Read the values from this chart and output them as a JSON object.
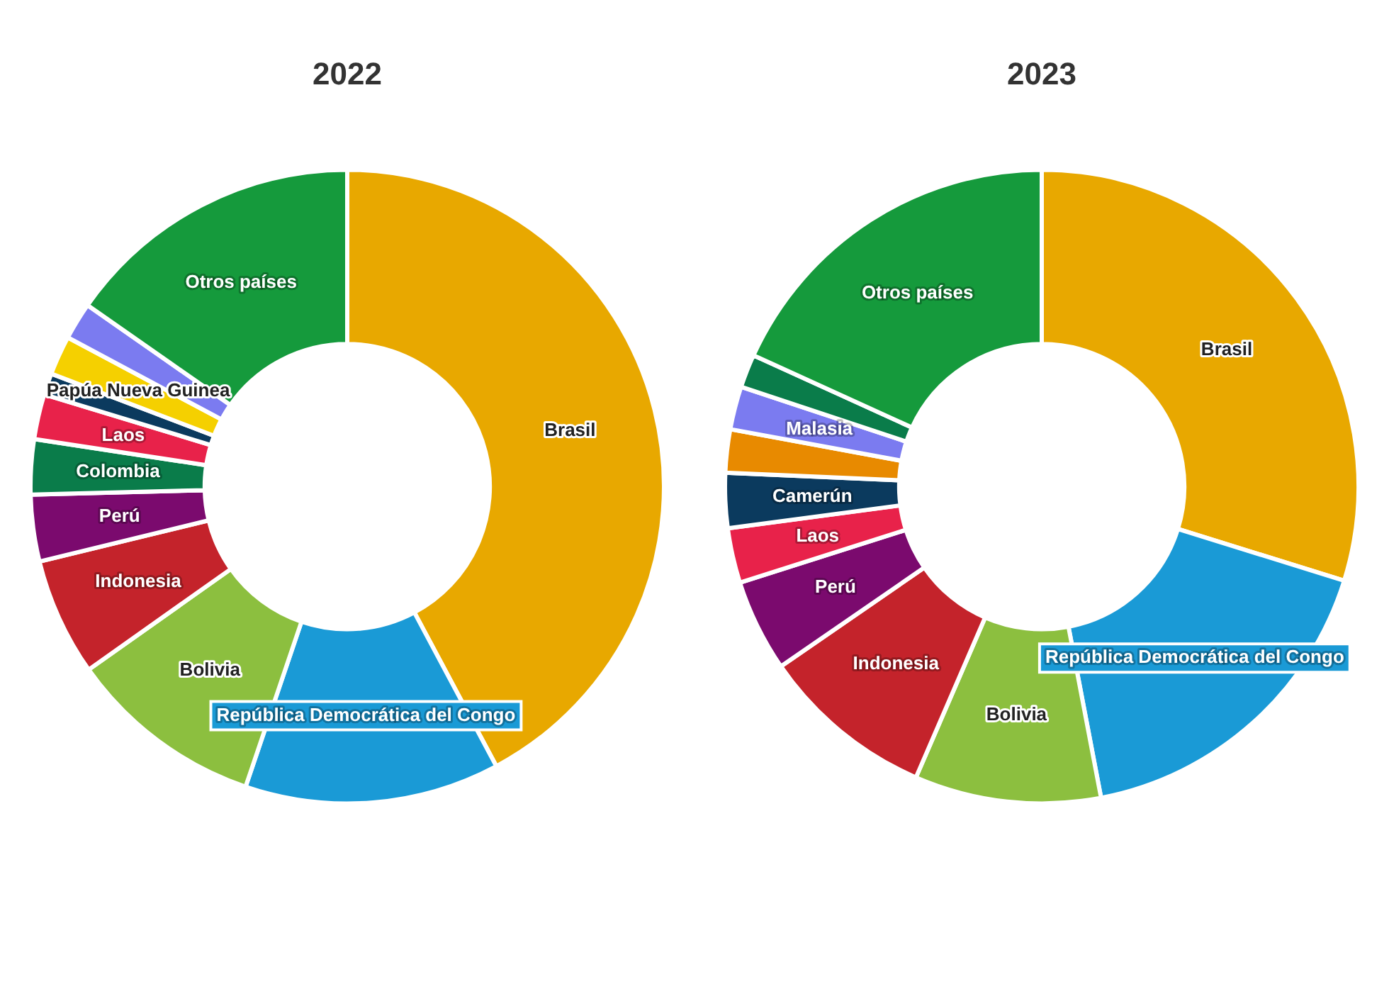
{
  "chart_data": [
    {
      "type": "donut",
      "title": "2022",
      "categories": [
        "Brasil",
        "República Democrática del Congo",
        "Bolivia",
        "Indonesia",
        "Perú",
        "Colombia",
        "Laos",
        null,
        "Papúa Nueva Guinea",
        null,
        "Otros países"
      ],
      "values": [
        42.2,
        13,
        10,
        6,
        3.4,
        2.8,
        2.3,
        1.1,
        2,
        1.9,
        15.3
      ],
      "colors": [
        "#e8a800",
        "#1a9ad6",
        "#8cbf3f",
        "#c4232b",
        "#7b0a6e",
        "#0a7c4a",
        "#e8224a",
        "#0b3a5e",
        "#f5d000",
        "#7b7bf0",
        "#159a3c"
      ],
      "legend": false
    },
    {
      "type": "donut",
      "title": "2023",
      "categories": [
        "Brasil",
        "República Democrática del Congo",
        "Bolivia",
        "Indonesia",
        "Perú",
        "Laos",
        "Camerún",
        null,
        "Malasia",
        null,
        "Otros países"
      ],
      "values": [
        29.8,
        17.2,
        9.5,
        8.9,
        4.7,
        2.8,
        2.8,
        2.2,
        2.2,
        1.7,
        18.2
      ],
      "colors": [
        "#e8a800",
        "#1a9ad6",
        "#8cbf3f",
        "#c4232b",
        "#7b0a6e",
        "#e8224a",
        "#0b3a5e",
        "#e88a00",
        "#7b7bf0",
        "#0a7c4a",
        "#159a3c"
      ],
      "legend": false
    }
  ]
}
